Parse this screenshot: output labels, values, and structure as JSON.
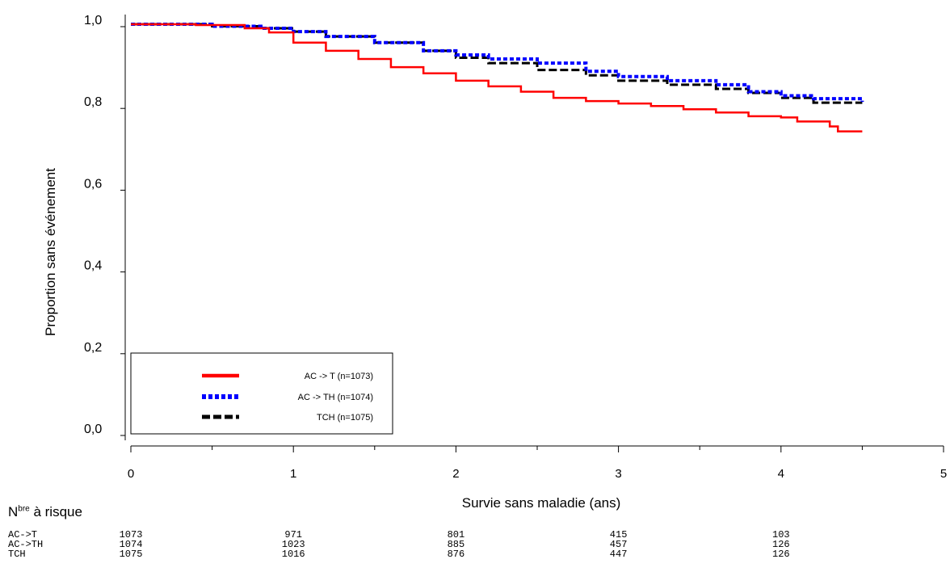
{
  "chart_data": {
    "type": "line",
    "xlabel": "Survie sans maladie (ans)",
    "ylabel": "Proportion sans événement",
    "xlim": [
      0,
      5
    ],
    "ylim": [
      0,
      1
    ],
    "xticks": [
      "0",
      "1",
      "2",
      "3",
      "4",
      "5"
    ],
    "yticks": [
      "0,0",
      "0,2",
      "0,4",
      "0,6",
      "0,8",
      "1,0"
    ],
    "grid": false,
    "legend_position": "bottom-left",
    "series": [
      {
        "name": "AC -> T (n=1073)",
        "color": "#ff0000",
        "style": "solid",
        "points": [
          [
            0,
            1.0
          ],
          [
            0.4,
            0.998
          ],
          [
            0.7,
            0.99
          ],
          [
            0.85,
            0.98
          ],
          [
            1.0,
            0.955
          ],
          [
            1.2,
            0.935
          ],
          [
            1.4,
            0.915
          ],
          [
            1.6,
            0.895
          ],
          [
            1.8,
            0.88
          ],
          [
            2.0,
            0.862
          ],
          [
            2.2,
            0.848
          ],
          [
            2.4,
            0.835
          ],
          [
            2.6,
            0.82
          ],
          [
            2.8,
            0.812
          ],
          [
            3.0,
            0.806
          ],
          [
            3.2,
            0.8
          ],
          [
            3.4,
            0.792
          ],
          [
            3.6,
            0.784
          ],
          [
            3.8,
            0.775
          ],
          [
            4.0,
            0.772
          ],
          [
            4.1,
            0.762
          ],
          [
            4.3,
            0.75
          ],
          [
            4.35,
            0.738
          ],
          [
            4.5,
            0.738
          ]
        ]
      },
      {
        "name": "AC -> TH (n=1074)",
        "color": "#0000ff",
        "style": "dotted",
        "points": [
          [
            0,
            1.0
          ],
          [
            0.5,
            0.995
          ],
          [
            0.8,
            0.99
          ],
          [
            1.0,
            0.982
          ],
          [
            1.2,
            0.97
          ],
          [
            1.5,
            0.955
          ],
          [
            1.8,
            0.935
          ],
          [
            2.0,
            0.925
          ],
          [
            2.2,
            0.915
          ],
          [
            2.5,
            0.905
          ],
          [
            2.8,
            0.885
          ],
          [
            3.0,
            0.872
          ],
          [
            3.3,
            0.862
          ],
          [
            3.6,
            0.852
          ],
          [
            3.8,
            0.835
          ],
          [
            4.0,
            0.825
          ],
          [
            4.2,
            0.818
          ],
          [
            4.5,
            0.81
          ]
        ]
      },
      {
        "name": "TCH (n=1075)",
        "color": "#000000",
        "style": "dashed",
        "points": [
          [
            0,
            1.0
          ],
          [
            0.5,
            0.995
          ],
          [
            0.8,
            0.99
          ],
          [
            1.0,
            0.982
          ],
          [
            1.2,
            0.97
          ],
          [
            1.5,
            0.955
          ],
          [
            1.8,
            0.935
          ],
          [
            2.0,
            0.918
          ],
          [
            2.2,
            0.905
          ],
          [
            2.5,
            0.888
          ],
          [
            2.8,
            0.875
          ],
          [
            3.0,
            0.862
          ],
          [
            3.3,
            0.852
          ],
          [
            3.6,
            0.842
          ],
          [
            3.8,
            0.832
          ],
          [
            4.0,
            0.82
          ],
          [
            4.2,
            0.808
          ],
          [
            4.5,
            0.808
          ]
        ]
      }
    ],
    "risk_table": {
      "title_main": "N",
      "title_sup": "bre",
      "title_rest": " à risque",
      "x": [
        0,
        1,
        2,
        3,
        4
      ],
      "rows": [
        {
          "label": "AC->T",
          "values": [
            "1073",
            "971",
            "801",
            "415",
            "103"
          ]
        },
        {
          "label": "AC->TH",
          "values": [
            "1074",
            "1023",
            "885",
            "457",
            "126"
          ]
        },
        {
          "label": "TCH",
          "values": [
            "1075",
            "1016",
            "876",
            "447",
            "126"
          ]
        }
      ]
    }
  }
}
